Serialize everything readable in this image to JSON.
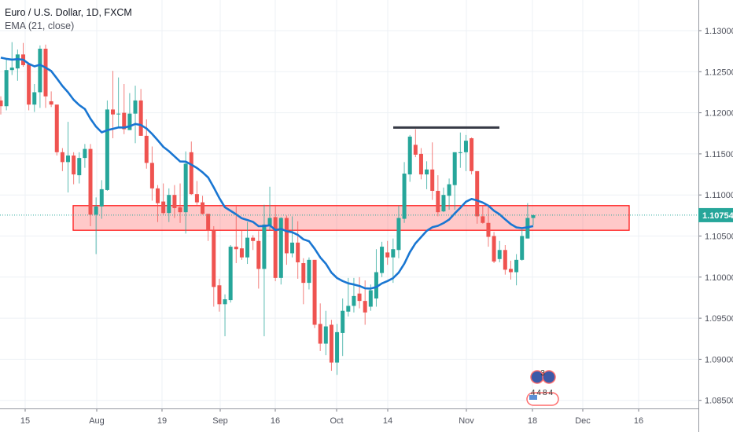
{
  "legend": {
    "title": "Euro / U.S. Dollar, 1D, FXCM",
    "indicator": "EMA (21, close)"
  },
  "colors": {
    "up": "#26a69a",
    "down": "#ef5350",
    "ema": "#1976d2",
    "zone_fill": "rgba(255,60,60,0.28)",
    "zone_border": "#ff1a1a",
    "resistance": "#363a45",
    "grid": "#edf1f5",
    "last_price": "#26a69a"
  },
  "logo": {
    "top": "3",
    "bottom": "4484"
  },
  "chart_data": {
    "type": "candlestick",
    "title": "Euro / U.S. Dollar, 1D, FXCM",
    "ylim": [
      1.0835,
      1.1335
    ],
    "y_ticks": [
      "1.13000",
      "1.12500",
      "1.12000",
      "1.11500",
      "1.11000",
      "1.10500",
      "1.10000",
      "1.09500",
      "1.09000",
      "1.08500"
    ],
    "x_ticks": [
      "15",
      "Aug",
      "19",
      "Sep",
      "16",
      "Oct",
      "14",
      "Nov",
      "18",
      "Dec",
      "16"
    ],
    "last_price": "1.10754",
    "ema": {
      "name": "EMA (21, close)",
      "period": 21,
      "seed": 1.1273
    },
    "zone": {
      "top": 1.1087,
      "bottom": 1.1057
    },
    "resistance_line": {
      "price": 1.1182
    },
    "ohlc": [
      [
        1.1215,
        1.122,
        1.1198,
        1.1208
      ],
      [
        1.1208,
        1.1265,
        1.1203,
        1.1252
      ],
      [
        1.1252,
        1.1286,
        1.1246,
        1.1255
      ],
      [
        1.1254,
        1.1277,
        1.1239,
        1.1271
      ],
      [
        1.1271,
        1.1285,
        1.1256,
        1.1258
      ],
      [
        1.1259,
        1.1259,
        1.1203,
        1.121
      ],
      [
        1.121,
        1.1235,
        1.1201,
        1.1225
      ],
      [
        1.1225,
        1.1282,
        1.1206,
        1.1278
      ],
      [
        1.1278,
        1.1283,
        1.1206,
        1.122
      ],
      [
        1.1214,
        1.1226,
        1.1207,
        1.121
      ],
      [
        1.121,
        1.121,
        1.1148,
        1.1152
      ],
      [
        1.1152,
        1.1157,
        1.1129,
        1.114
      ],
      [
        1.114,
        1.1189,
        1.1103,
        1.1148
      ],
      [
        1.1148,
        1.1152,
        1.1113,
        1.1125
      ],
      [
        1.1124,
        1.1152,
        1.1114,
        1.1145
      ],
      [
        1.1145,
        1.1162,
        1.1133,
        1.1156
      ],
      [
        1.1156,
        1.1162,
        1.1062,
        1.1076
      ],
      [
        1.1076,
        1.1097,
        1.1028,
        1.1086
      ],
      [
        1.1086,
        1.1118,
        1.1071,
        1.1107
      ],
      [
        1.1106,
        1.1215,
        1.1105,
        1.1204
      ],
      [
        1.1204,
        1.1251,
        1.1169,
        1.1198
      ],
      [
        1.1198,
        1.1243,
        1.1182,
        1.1199
      ],
      [
        1.12,
        1.1235,
        1.1174,
        1.118
      ],
      [
        1.1179,
        1.1224,
        1.1179,
        1.1199
      ],
      [
        1.1199,
        1.1233,
        1.1163,
        1.1215
      ],
      [
        1.1215,
        1.1229,
        1.1172,
        1.1172
      ],
      [
        1.1172,
        1.1192,
        1.1132,
        1.1139
      ],
      [
        1.1139,
        1.1159,
        1.1093,
        1.1108
      ],
      [
        1.1108,
        1.1112,
        1.1067,
        1.109
      ],
      [
        1.1092,
        1.1114,
        1.1076,
        1.1078
      ],
      [
        1.1078,
        1.1108,
        1.1067,
        1.11
      ],
      [
        1.11,
        1.1112,
        1.1072,
        1.1084
      ],
      [
        1.1085,
        1.1114,
        1.1066,
        1.1079
      ],
      [
        1.1079,
        1.1153,
        1.1053,
        1.1138
      ],
      [
        1.1152,
        1.1165,
        1.11,
        1.1101
      ],
      [
        1.1101,
        1.1117,
        1.1088,
        1.1091
      ],
      [
        1.1091,
        1.1099,
        1.1076,
        1.1077
      ],
      [
        1.1077,
        1.1077,
        1.1044,
        1.1057
      ],
      [
        1.1057,
        1.1062,
        1.0964,
        1.0988
      ],
      [
        1.099,
        1.0998,
        1.0958,
        1.0967
      ],
      [
        1.0967,
        1.0979,
        1.0928,
        1.0973
      ],
      [
        1.0972,
        1.1039,
        1.0969,
        1.1037
      ],
      [
        1.1037,
        1.1086,
        1.1017,
        1.1034
      ],
      [
        1.1035,
        1.1057,
        1.1021,
        1.1024
      ],
      [
        1.1024,
        1.1067,
        1.1016,
        1.1048
      ],
      [
        1.1048,
        1.1051,
        1.1033,
        1.1044
      ],
      [
        1.1044,
        1.1056,
        1.0986,
        1.101
      ],
      [
        1.101,
        1.1088,
        1.0928,
        1.1064
      ],
      [
        1.1063,
        1.111,
        1.1057,
        1.1072
      ],
      [
        1.1073,
        1.1086,
        1.0995,
        1.0999
      ],
      [
        1.0999,
        1.1073,
        1.0991,
        1.1072
      ],
      [
        1.1072,
        1.1075,
        1.1015,
        1.1029
      ],
      [
        1.1029,
        1.1074,
        1.1024,
        1.1042
      ],
      [
        1.1042,
        1.1068,
        1.0998,
        1.1018
      ],
      [
        1.1017,
        1.1023,
        1.0967,
        1.0993
      ],
      [
        1.0993,
        1.1024,
        1.0985,
        1.1021
      ],
      [
        1.1021,
        1.1021,
        1.0938,
        1.0942
      ],
      [
        1.0943,
        1.0968,
        1.091,
        1.0919
      ],
      [
        1.0919,
        1.0959,
        1.0905,
        1.094
      ],
      [
        1.0942,
        1.0948,
        1.0886,
        1.0896
      ],
      [
        1.0896,
        1.0943,
        1.0881,
        1.0933
      ],
      [
        1.0932,
        1.0974,
        1.0904,
        1.0959
      ],
      [
        1.0958,
        1.0999,
        1.0952,
        1.0965
      ],
      [
        1.0965,
        1.0999,
        1.0957,
        1.0977
      ],
      [
        1.098,
        1.1,
        1.0962,
        1.0971
      ],
      [
        1.0971,
        1.0996,
        1.0942,
        1.0957
      ],
      [
        1.0964,
        1.0991,
        1.0959,
        1.0984
      ],
      [
        1.0974,
        1.1034,
        1.0964,
        1.1006
      ],
      [
        1.1005,
        1.1043,
        1.1,
        1.1037
      ],
      [
        1.103,
        1.1044,
        1.1015,
        1.1024
      ],
      [
        1.1024,
        1.1047,
        1.0993,
        1.1034
      ],
      [
        1.1033,
        1.1087,
        1.1023,
        1.1072
      ],
      [
        1.1071,
        1.114,
        1.1066,
        1.1126
      ],
      [
        1.1125,
        1.1173,
        1.1116,
        1.1171
      ],
      [
        1.1161,
        1.118,
        1.1146,
        1.1149
      ],
      [
        1.115,
        1.1157,
        1.1119,
        1.1125
      ],
      [
        1.1125,
        1.1141,
        1.1107,
        1.1131
      ],
      [
        1.1131,
        1.1164,
        1.1094,
        1.1105
      ],
      [
        1.1105,
        1.1124,
        1.1074,
        1.1079
      ],
      [
        1.108,
        1.1109,
        1.1079,
        1.11
      ],
      [
        1.1099,
        1.112,
        1.1082,
        1.1113
      ],
      [
        1.1112,
        1.1152,
        1.1082,
        1.1152
      ],
      [
        1.1151,
        1.1176,
        1.1133,
        1.1152
      ],
      [
        1.1152,
        1.1173,
        1.1129,
        1.1166
      ],
      [
        1.1169,
        1.117,
        1.1125,
        1.1129
      ],
      [
        1.1129,
        1.1129,
        1.1065,
        1.1074
      ],
      [
        1.1074,
        1.1087,
        1.1065,
        1.1066
      ],
      [
        1.1066,
        1.1088,
        1.1037,
        1.1049
      ],
      [
        1.105,
        1.1055,
        1.1017,
        1.1019
      ],
      [
        1.1022,
        1.1044,
        1.1018,
        1.1033
      ],
      [
        1.1033,
        1.1039,
        1.1003,
        1.1009
      ],
      [
        1.101,
        1.102,
        1.0997,
        1.1006
      ],
      [
        1.1006,
        1.1028,
        1.099,
        1.1021
      ],
      [
        1.1021,
        1.1058,
        1.102,
        1.105
      ],
      [
        1.1047,
        1.109,
        1.1047,
        1.1072
      ],
      [
        1.1072,
        1.1076,
        1.1063,
        1.10754
      ]
    ]
  }
}
